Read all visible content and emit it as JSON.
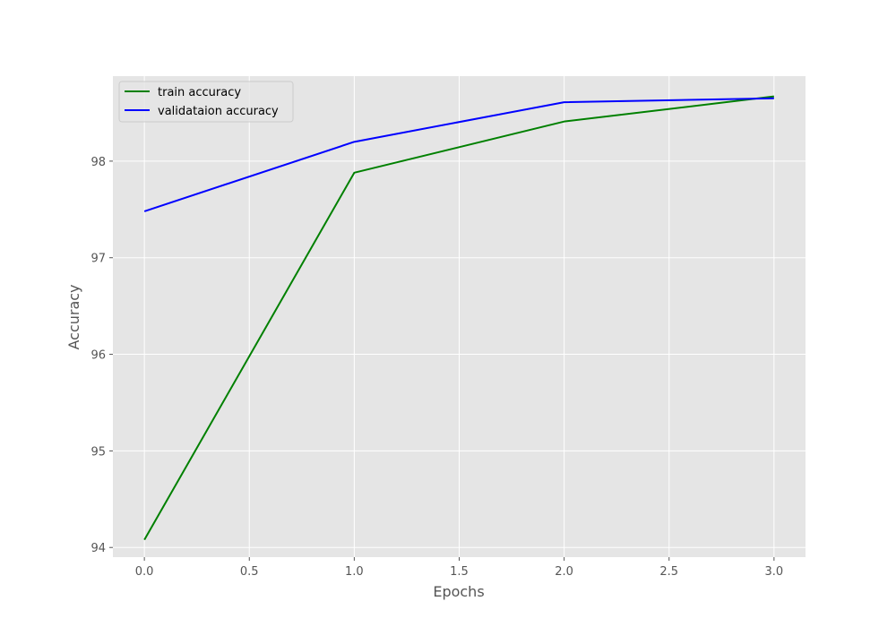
{
  "chart_data": {
    "type": "line",
    "title": "",
    "xlabel": "Epochs",
    "ylabel": "Accuracy",
    "xlim": [
      -0.15,
      3.15
    ],
    "ylim": [
      93.9,
      98.88
    ],
    "x_ticks": [
      0.0,
      0.5,
      1.0,
      1.5,
      2.0,
      2.5,
      3.0
    ],
    "x_tick_labels": [
      "0.0",
      "0.5",
      "1.0",
      "1.5",
      "2.0",
      "2.5",
      "3.0"
    ],
    "y_ticks": [
      94,
      95,
      96,
      97,
      98
    ],
    "y_tick_labels": [
      "94",
      "95",
      "96",
      "97",
      "98"
    ],
    "grid": true,
    "legend_position": "top-left",
    "background_color": "#e5e5e5",
    "grid_color": "#ffffff",
    "series": [
      {
        "name": "train accuracy",
        "color": "#008000",
        "x": [
          0,
          1,
          2,
          3
        ],
        "y": [
          94.08,
          97.88,
          98.41,
          98.67
        ]
      },
      {
        "name": "validataion accuracy",
        "color": "#0000ff",
        "x": [
          0,
          1,
          2,
          3
        ],
        "y": [
          97.48,
          98.2,
          98.61,
          98.65
        ]
      }
    ]
  }
}
